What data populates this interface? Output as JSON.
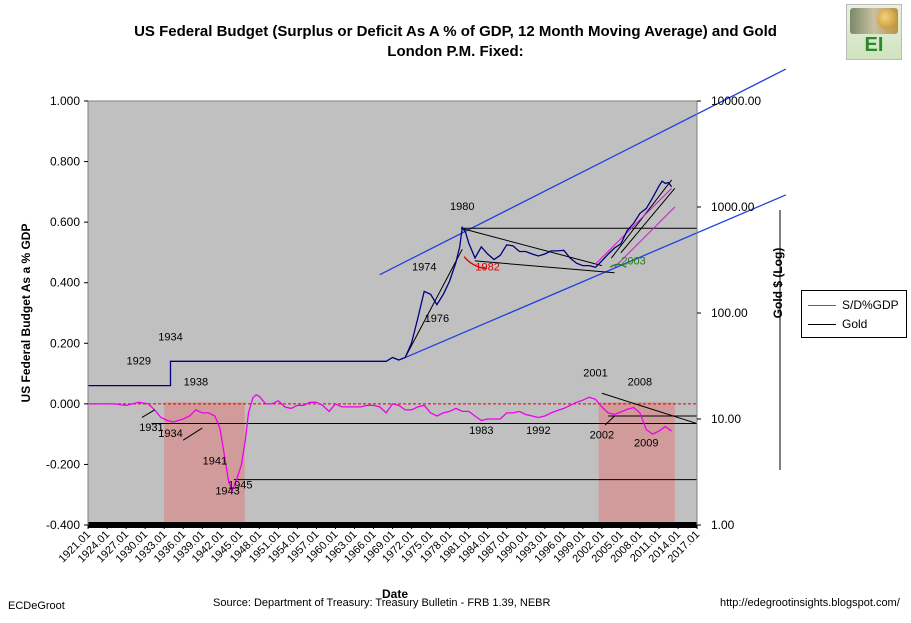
{
  "title": "US Federal Budget (Surplus or Deficit As A % of GDP, 12 Month Moving Average) and Gold London P.M. Fixed:",
  "title_line1": "US Federal Budget (Surplus or Deficit As A % of GDP, 12 Month Moving Average) and Gold",
  "title_line2": "London P.M. Fixed:",
  "logo_text": "EI",
  "footer": {
    "author": "ECDeGroot",
    "source": "Source:  Department of Treasury: Treasury Bulletin - FRB 1.39, NEBR",
    "url": "http://edegrootinsights.blogspot.com/"
  },
  "colors": {
    "plot_bg": "#c0c0c0",
    "recession_shade": "#d49494",
    "budget_line": "#ee00ee",
    "gold_line": "#000080",
    "channel_line": "#2040e0",
    "zero_line": "#e00000",
    "annotation_red": "#e00000",
    "annotation_green": "#208020"
  },
  "chart_data": {
    "type": "line",
    "title": "US Federal Budget (Surplus or Deficit As A % of GDP, 12 Month Moving Average) and Gold London P.M. Fixed:",
    "xlabel": "Date",
    "ylabel": "US Federal Budget As a % GDP",
    "y2label": "Gold $ (Log)",
    "ylim": [
      -0.4,
      1.0
    ],
    "y2lim": [
      1,
      10000
    ],
    "y2_scale": "log",
    "grid": false,
    "legend_position": "right",
    "y_ticks": [
      "1.000",
      "0.800",
      "0.600",
      "0.400",
      "0.200",
      "0.000",
      "-0.200",
      "-0.400"
    ],
    "y2_ticks": [
      "10000.00",
      "1000.00",
      "100.00",
      "10.00",
      "1.00"
    ],
    "x_ticks": [
      "1921.01",
      "1924.01",
      "1927.01",
      "1930.01",
      "1933.01",
      "1936.01",
      "1939.01",
      "1942.01",
      "1945.01",
      "1948.01",
      "1951.01",
      "1954.01",
      "1957.01",
      "1960.01",
      "1963.01",
      "1966.01",
      "1969.01",
      "1972.01",
      "1975.01",
      "1978.01",
      "1981.01",
      "1984.01",
      "1987.01",
      "1990.01",
      "1993.01",
      "1996.01",
      "1999.01",
      "2002.01",
      "2005.01",
      "2008.01",
      "2011.01",
      "2014.01",
      "2017.01"
    ],
    "series": [
      {
        "name": "S/D%GDP",
        "axis": "left",
        "points": [
          [
            1921,
            0.0
          ],
          [
            1923,
            0.0
          ],
          [
            1925,
            0.0
          ],
          [
            1927,
            -0.005
          ],
          [
            1929,
            0.005
          ],
          [
            1930.5,
            0.0
          ],
          [
            1931.5,
            -0.02
          ],
          [
            1932.5,
            -0.045
          ],
          [
            1933.5,
            -0.055
          ],
          [
            1934.5,
            -0.06
          ],
          [
            1936,
            -0.05
          ],
          [
            1937,
            -0.04
          ],
          [
            1938,
            -0.02
          ],
          [
            1939,
            -0.03
          ],
          [
            1940,
            -0.03
          ],
          [
            1941,
            -0.04
          ],
          [
            1941.8,
            -0.08
          ],
          [
            1942.5,
            -0.17
          ],
          [
            1943.2,
            -0.26
          ],
          [
            1943.8,
            -0.285
          ],
          [
            1944.5,
            -0.245
          ],
          [
            1945.2,
            -0.2
          ],
          [
            1945.8,
            -0.12
          ],
          [
            1946.3,
            -0.03
          ],
          [
            1947,
            0.02
          ],
          [
            1947.5,
            0.03
          ],
          [
            1948,
            0.025
          ],
          [
            1949,
            0.0
          ],
          [
            1950,
            0.0
          ],
          [
            1951,
            0.01
          ],
          [
            1952,
            -0.01
          ],
          [
            1953,
            -0.015
          ],
          [
            1954,
            -0.005
          ],
          [
            1955,
            -0.005
          ],
          [
            1956,
            0.005
          ],
          [
            1957,
            0.005
          ],
          [
            1958,
            -0.005
          ],
          [
            1959,
            -0.025
          ],
          [
            1960,
            0.0
          ],
          [
            1961,
            -0.01
          ],
          [
            1962,
            -0.01
          ],
          [
            1963,
            -0.01
          ],
          [
            1964,
            -0.01
          ],
          [
            1965,
            -0.005
          ],
          [
            1966,
            -0.005
          ],
          [
            1967,
            -0.01
          ],
          [
            1968,
            -0.03
          ],
          [
            1969,
            0.0
          ],
          [
            1970,
            -0.005
          ],
          [
            1971,
            -0.02
          ],
          [
            1972,
            -0.02
          ],
          [
            1973,
            -0.01
          ],
          [
            1974,
            -0.005
          ],
          [
            1975,
            -0.03
          ],
          [
            1976,
            -0.04
          ],
          [
            1977,
            -0.03
          ],
          [
            1978,
            -0.025
          ],
          [
            1979,
            -0.015
          ],
          [
            1980,
            -0.025
          ],
          [
            1981,
            -0.025
          ],
          [
            1982,
            -0.04
          ],
          [
            1983,
            -0.055
          ],
          [
            1984,
            -0.05
          ],
          [
            1985,
            -0.05
          ],
          [
            1986,
            -0.05
          ],
          [
            1987,
            -0.03
          ],
          [
            1988,
            -0.03
          ],
          [
            1989,
            -0.025
          ],
          [
            1990,
            -0.035
          ],
          [
            1991,
            -0.04
          ],
          [
            1992,
            -0.045
          ],
          [
            1993,
            -0.04
          ],
          [
            1994,
            -0.03
          ],
          [
            1995,
            -0.022
          ],
          [
            1996,
            -0.015
          ],
          [
            1997,
            -0.005
          ],
          [
            1998,
            0.005
          ],
          [
            1999,
            0.012
          ],
          [
            2000,
            0.022
          ],
          [
            2001,
            0.015
          ],
          [
            2002,
            -0.01
          ],
          [
            2003,
            -0.03
          ],
          [
            2004,
            -0.035
          ],
          [
            2005,
            -0.027
          ],
          [
            2006,
            -0.018
          ],
          [
            2007,
            -0.012
          ],
          [
            2008,
            -0.03
          ],
          [
            2009,
            -0.085
          ],
          [
            2010,
            -0.1
          ],
          [
            2011,
            -0.09
          ],
          [
            2012,
            -0.075
          ],
          [
            2013,
            -0.09
          ]
        ]
      },
      {
        "name": "Gold",
        "axis": "right",
        "points": [
          [
            1921,
            20.67
          ],
          [
            1934,
            20.67
          ],
          [
            1934.01,
            35
          ],
          [
            1968,
            35
          ],
          [
            1969,
            38
          ],
          [
            1970,
            36
          ],
          [
            1971,
            38
          ],
          [
            1972,
            52
          ],
          [
            1973,
            90
          ],
          [
            1974,
            160
          ],
          [
            1975,
            150
          ],
          [
            1976,
            120
          ],
          [
            1977,
            150
          ],
          [
            1978,
            200
          ],
          [
            1979,
            300
          ],
          [
            1979.6,
            420
          ],
          [
            1980,
            640
          ],
          [
            1980.5,
            580
          ],
          [
            1981,
            460
          ],
          [
            1982,
            330
          ],
          [
            1983,
            420
          ],
          [
            1984,
            360
          ],
          [
            1985,
            320
          ],
          [
            1986,
            350
          ],
          [
            1987,
            440
          ],
          [
            1988,
            430
          ],
          [
            1989,
            380
          ],
          [
            1990,
            380
          ],
          [
            1991,
            360
          ],
          [
            1992,
            345
          ],
          [
            1993,
            360
          ],
          [
            1994,
            385
          ],
          [
            1995,
            385
          ],
          [
            1996,
            390
          ],
          [
            1997,
            330
          ],
          [
            1998,
            295
          ],
          [
            1999,
            280
          ],
          [
            2000,
            280
          ],
          [
            2001,
            270
          ],
          [
            2002,
            310
          ],
          [
            2003,
            360
          ],
          [
            2004,
            410
          ],
          [
            2005,
            450
          ],
          [
            2006,
            600
          ],
          [
            2007,
            700
          ],
          [
            2008,
            870
          ],
          [
            2009,
            970
          ],
          [
            2010,
            1220
          ],
          [
            2011,
            1570
          ],
          [
            2011.5,
            1750
          ],
          [
            2012,
            1670
          ],
          [
            2012.5,
            1700
          ],
          [
            2013,
            1550
          ]
        ]
      }
    ],
    "shaded_periods": [
      [
        1933,
        1945.7
      ],
      [
        2001.5,
        2013.5
      ]
    ],
    "annotations": [
      {
        "text": "1929",
        "x": 1929,
        "y": 0.13
      },
      {
        "text": "1934",
        "x": 1934,
        "y": 0.21
      },
      {
        "text": "1938",
        "x": 1938,
        "y": 0.06
      },
      {
        "text": "1931",
        "x": 1931,
        "y": -0.09
      },
      {
        "text": "1934",
        "x": 1934,
        "y": -0.11
      },
      {
        "text": "1941",
        "x": 1941,
        "y": -0.2
      },
      {
        "text": "1943",
        "x": 1943,
        "y": -0.3
      },
      {
        "text": "1945",
        "x": 1945,
        "y": -0.28
      },
      {
        "text": "1974",
        "x": 1974,
        "y": 0.44
      },
      {
        "text": "1976",
        "x": 1976,
        "y": 0.27
      },
      {
        "text": "1980",
        "x": 1980,
        "y": 0.64
      },
      {
        "text": "1982",
        "x": 1984,
        "y": 0.44
      },
      {
        "text": "2003",
        "x": 2007,
        "y": 0.46
      },
      {
        "text": "1983",
        "x": 1983,
        "y": -0.1
      },
      {
        "text": "1992",
        "x": 1992,
        "y": -0.1
      },
      {
        "text": "2001",
        "x": 2001,
        "y": 0.09
      },
      {
        "text": "2002",
        "x": 2002,
        "y": -0.115
      },
      {
        "text": "2008",
        "x": 2008,
        "y": 0.06
      },
      {
        "text": "2009",
        "x": 2009,
        "y": -0.14
      }
    ]
  },
  "legend": [
    {
      "label": "S/D%GDP",
      "color": "#ee00ee"
    },
    {
      "label": "Gold",
      "color": "#000000"
    }
  ]
}
